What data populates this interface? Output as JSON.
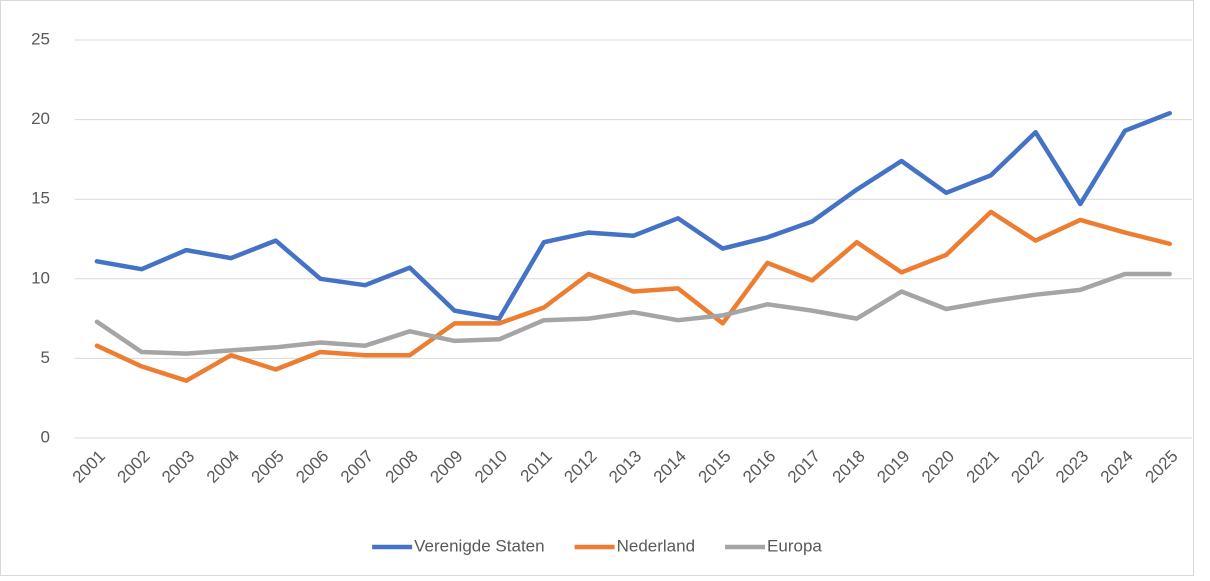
{
  "chart_data": {
    "type": "line",
    "categories": [
      "2001",
      "2002",
      "2003",
      "2004",
      "2005",
      "2006",
      "2007",
      "2008",
      "2009",
      "2010",
      "2011",
      "2012",
      "2013",
      "2014",
      "2015",
      "2016",
      "2017",
      "2018",
      "2019",
      "2020",
      "2021",
      "2022",
      "2023",
      "2024",
      "2025"
    ],
    "series": [
      {
        "name": "Verenigde Staten",
        "color": "#4472c4",
        "values": [
          11.1,
          10.6,
          11.8,
          11.3,
          12.4,
          10.0,
          9.6,
          10.7,
          8.0,
          7.5,
          12.3,
          12.9,
          12.7,
          13.8,
          11.9,
          12.6,
          13.6,
          15.6,
          17.4,
          15.4,
          16.5,
          19.2,
          14.7,
          19.3,
          20.4
        ]
      },
      {
        "name": "Nederland",
        "color": "#ed7d31",
        "values": [
          5.8,
          4.5,
          3.6,
          5.2,
          4.3,
          5.4,
          5.2,
          5.2,
          7.2,
          7.2,
          8.2,
          10.3,
          9.2,
          9.4,
          7.2,
          11.0,
          9.9,
          12.3,
          10.4,
          11.5,
          14.2,
          12.4,
          13.7,
          12.9,
          12.2
        ]
      },
      {
        "name": "Europa",
        "color": "#a5a5a5",
        "values": [
          7.3,
          5.4,
          5.3,
          5.5,
          5.7,
          6.0,
          5.8,
          6.7,
          6.1,
          6.2,
          7.4,
          7.5,
          7.9,
          7.4,
          7.7,
          8.4,
          8.0,
          7.5,
          9.2,
          8.1,
          8.6,
          9.0,
          9.3,
          10.3,
          10.3
        ]
      }
    ],
    "ylim": [
      0,
      25
    ],
    "yticks": [
      0,
      5,
      10,
      15,
      20,
      25
    ],
    "grid": true,
    "legend": "bottom"
  }
}
